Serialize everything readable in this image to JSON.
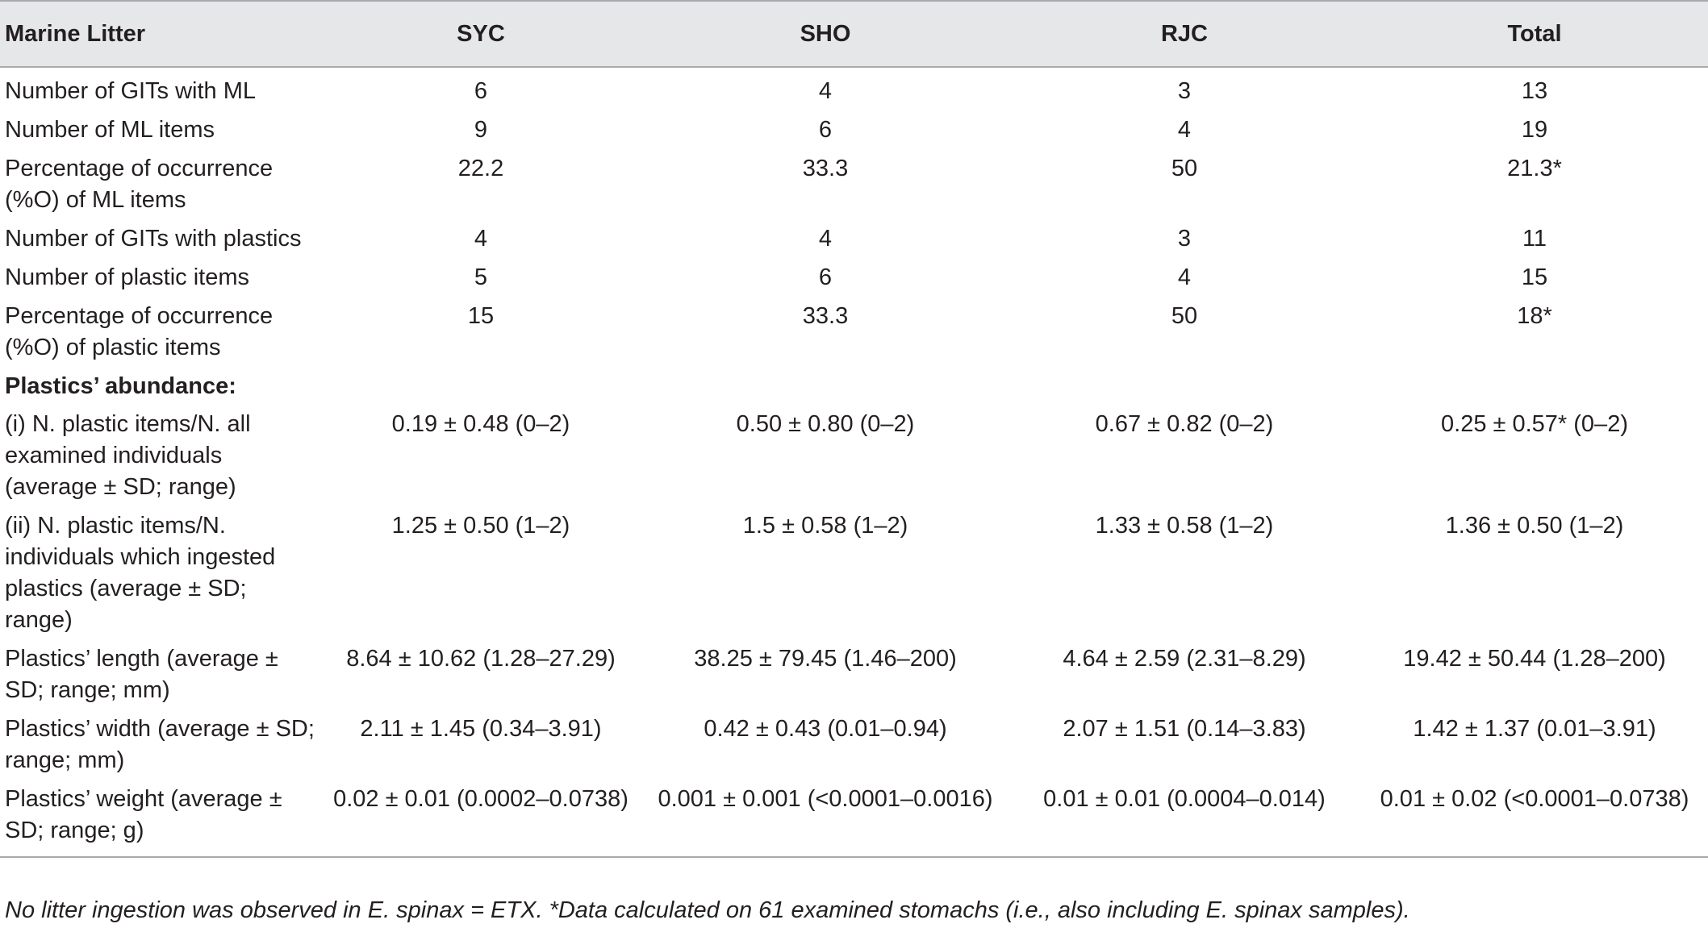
{
  "table": {
    "headers": [
      "Marine Litter",
      "SYC",
      "SHO",
      "RJC",
      "Total"
    ],
    "rows": [
      {
        "label": "Number of GITs with ML",
        "values": [
          "6",
          "4",
          "3",
          "13"
        ]
      },
      {
        "label": "Number of ML items",
        "values": [
          "9",
          "6",
          "4",
          "19"
        ]
      },
      {
        "label": "Percentage of occurrence (%O) of ML items",
        "values": [
          "22.2",
          "33.3",
          "50",
          "21.3*"
        ]
      },
      {
        "label": "Number of GITs with plastics",
        "values": [
          "4",
          "4",
          "3",
          "11"
        ]
      },
      {
        "label": "Number of plastic items",
        "values": [
          "5",
          "6",
          "4",
          "15"
        ]
      },
      {
        "label": "Percentage of occurrence (%O) of plastic items",
        "values": [
          "15",
          "33.3",
          "50",
          "18*"
        ]
      },
      {
        "section": "Plastics’ abundance:"
      },
      {
        "label": "(i) N. plastic items/N. all examined individuals (average ± SD; range)",
        "values": [
          "0.19 ± 0.48 (0–2)",
          "0.50 ± 0.80 (0–2)",
          "0.67 ± 0.82 (0–2)",
          "0.25 ± 0.57* (0–2)"
        ]
      },
      {
        "label": "(ii) N. plastic items/N. individuals which ingested plastics (average ± SD; range)",
        "values": [
          "1.25 ± 0.50 (1–2)",
          "1.5 ± 0.58 (1–2)",
          "1.33 ± 0.58 (1–2)",
          "1.36 ± 0.50 (1–2)"
        ]
      },
      {
        "label": "Plastics’ length (average ± SD; range; mm)",
        "values": [
          "8.64 ± 10.62 (1.28–27.29)",
          "38.25 ± 79.45 (1.46–200)",
          "4.64 ± 2.59 (2.31–8.29)",
          "19.42 ± 50.44 (1.28–200)"
        ]
      },
      {
        "label": "Plastics’ width (average ± SD; range; mm)",
        "values": [
          "2.11 ± 1.45 (0.34–3.91)",
          "0.42 ± 0.43 (0.01–0.94)",
          "2.07 ± 1.51 (0.14–3.83)",
          "1.42 ± 1.37 (0.01–3.91)"
        ]
      },
      {
        "label": "Plastics’ weight (average ± SD; range; g)",
        "values": [
          "0.02 ± 0.01 (0.0002–0.0738)",
          "0.001 ± 0.001 (<0.0001–0.0016)",
          "0.01 ± 0.01 (0.0004–0.014)",
          "0.01 ± 0.02 (<0.0001–0.0738)"
        ]
      }
    ]
  },
  "footnote": "No litter ingestion was observed in E. spinax = ETX. *Data calculated on 61 examined stomachs (i.e., also including E. spinax samples).",
  "colors": {
    "header_bg": "#e6e7e8",
    "rule": "#a7a9ac",
    "text": "#231f20"
  }
}
